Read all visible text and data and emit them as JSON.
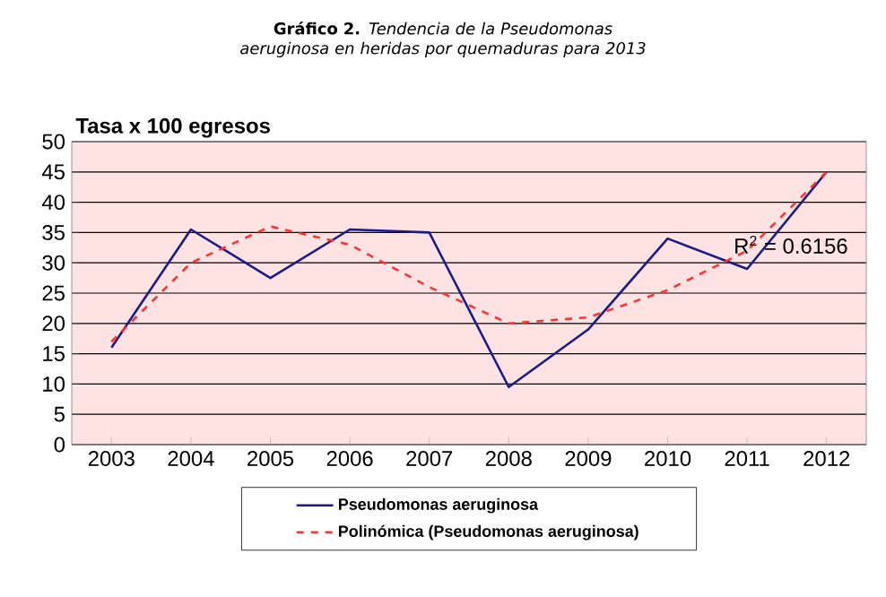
{
  "chart_data": {
    "type": "line",
    "title": "**Gráfico 2.** *Tendencia de la Pseudomonas aeruginosa en heridas por quemaduras para 2013*",
    "ylabel": "Tasa x 100 egresos",
    "categories": [
      "2003",
      "2004",
      "2005",
      "2006",
      "2007",
      "2008",
      "2009",
      "2010",
      "2011",
      "2012"
    ],
    "series": [
      {
        "name": "Pseudomonas aeruginosa",
        "color": "#1a1a8c",
        "line_style": "solid",
        "values": [
          16,
          35.5,
          27.5,
          35.5,
          35,
          9.5,
          19,
          34,
          29,
          45
        ]
      },
      {
        "name": "Polinómica (Pseudomonas aeruginosa)",
        "color": "#ff3333",
        "line_style": "dashed",
        "values": [
          17,
          30,
          36,
          33,
          26,
          20,
          21,
          25.5,
          32,
          45
        ]
      }
    ],
    "ylim": [
      0,
      50
    ],
    "yticks": [
      0,
      5,
      10,
      15,
      20,
      25,
      30,
      35,
      40,
      45,
      50
    ],
    "grid": "y",
    "legend": "bottom",
    "marker": "none",
    "annotations": [
      "R$^{2}$ = 0.6156"
    ]
  }
}
